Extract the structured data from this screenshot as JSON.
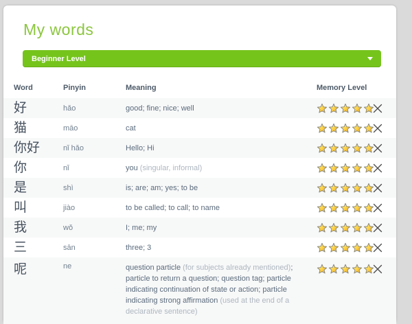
{
  "title": "My words",
  "level_selector": {
    "value": "Beginner Level",
    "icon": "chevron-down-icon"
  },
  "colors": {
    "title_green": "#8cc63f",
    "button_green": "#75c41c",
    "star_gold": "#f5b301",
    "page_background": "#dadada",
    "stripe": "#f7f8f8"
  },
  "table": {
    "columns": [
      "Word",
      "Pinyin",
      "Meaning",
      "Memory Level"
    ],
    "rows": [
      {
        "word": "好",
        "pinyin": "hǎo",
        "meaning_parts": [
          {
            "text": "good; fine; nice; well",
            "muted": false
          }
        ],
        "memory_level": 5,
        "max_level": 5
      },
      {
        "word": "猫",
        "pinyin": "māo",
        "meaning_parts": [
          {
            "text": "cat",
            "muted": false
          }
        ],
        "memory_level": 5,
        "max_level": 5
      },
      {
        "word": "你好",
        "pinyin": "nǐ hǎo",
        "meaning_parts": [
          {
            "text": "Hello; Hi",
            "muted": false
          }
        ],
        "memory_level": 5,
        "max_level": 5
      },
      {
        "word": "你",
        "pinyin": "nǐ",
        "meaning_parts": [
          {
            "text": "you ",
            "muted": false
          },
          {
            "text": "(singular, informal)",
            "muted": true
          }
        ],
        "memory_level": 5,
        "max_level": 5
      },
      {
        "word": "是",
        "pinyin": "shì",
        "meaning_parts": [
          {
            "text": "is; are; am; yes; to be",
            "muted": false
          }
        ],
        "memory_level": 5,
        "max_level": 5
      },
      {
        "word": "叫",
        "pinyin": "jiào",
        "meaning_parts": [
          {
            "text": "to be called; to call; to name",
            "muted": false
          }
        ],
        "memory_level": 5,
        "max_level": 5
      },
      {
        "word": "我",
        "pinyin": "wǒ",
        "meaning_parts": [
          {
            "text": "I; me; my",
            "muted": false
          }
        ],
        "memory_level": 5,
        "max_level": 5
      },
      {
        "word": "三",
        "pinyin": "sān",
        "meaning_parts": [
          {
            "text": "three; 3",
            "muted": false
          }
        ],
        "memory_level": 5,
        "max_level": 5
      },
      {
        "word": "呢",
        "pinyin": "ne",
        "meaning_parts": [
          {
            "text": "question particle ",
            "muted": false
          },
          {
            "text": "(for subjects already mentioned)",
            "muted": true
          },
          {
            "text": "; particle to return a question; question tag; particle indicating continuation of state or action; particle indicating strong affirmation ",
            "muted": false
          },
          {
            "text": "(used at the end of a declarative sentence)",
            "muted": true
          }
        ],
        "memory_level": 5,
        "max_level": 5
      }
    ]
  }
}
